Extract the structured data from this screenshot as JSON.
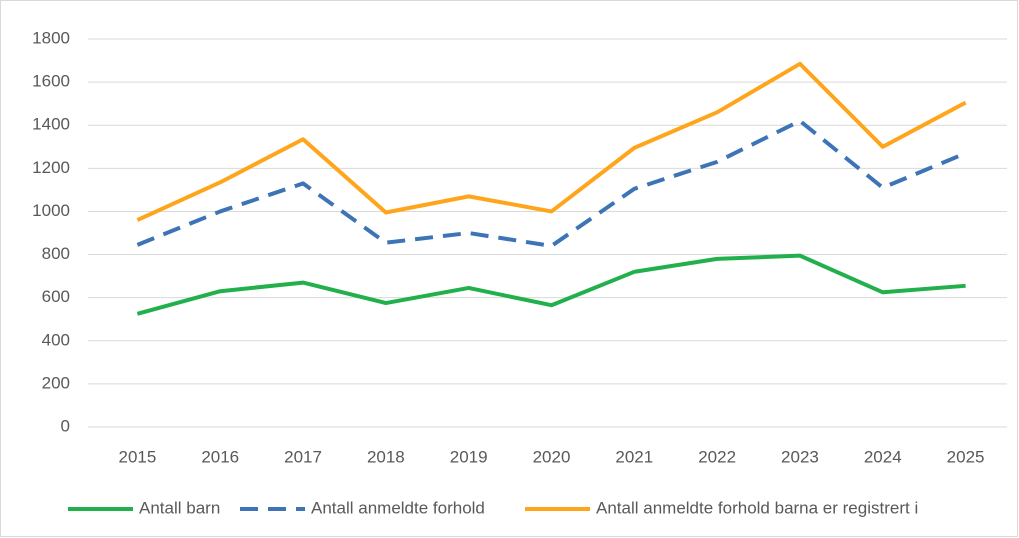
{
  "chart_data": {
    "type": "line",
    "categories": [
      "2015",
      "2016",
      "2017",
      "2018",
      "2019",
      "2020",
      "2021",
      "2022",
      "2023",
      "2024",
      "2025"
    ],
    "series": [
      {
        "name": "Antall barn",
        "color": "#22b04c",
        "line_style": "solid",
        "values": [
          525,
          630,
          670,
          575,
          645,
          565,
          720,
          780,
          795,
          625,
          655
        ]
      },
      {
        "name": "Antall anmeldte forhold",
        "color": "#3d74b6",
        "line_style": "dashed",
        "values": [
          845,
          1000,
          1130,
          855,
          900,
          840,
          1105,
          1230,
          1420,
          1110,
          1270
        ]
      },
      {
        "name": "Antall anmeldte forhold barna er registrert i",
        "color": "#ffa51c",
        "line_style": "solid",
        "values": [
          960,
          1135,
          1335,
          995,
          1070,
          1000,
          1295,
          1460,
          1685,
          1300,
          1505
        ]
      }
    ],
    "ylim": [
      0,
      1800
    ],
    "yticks": [
      0,
      200,
      400,
      600,
      800,
      1000,
      1200,
      1400,
      1600,
      1800
    ],
    "grid": true,
    "legend": "bottom"
  }
}
